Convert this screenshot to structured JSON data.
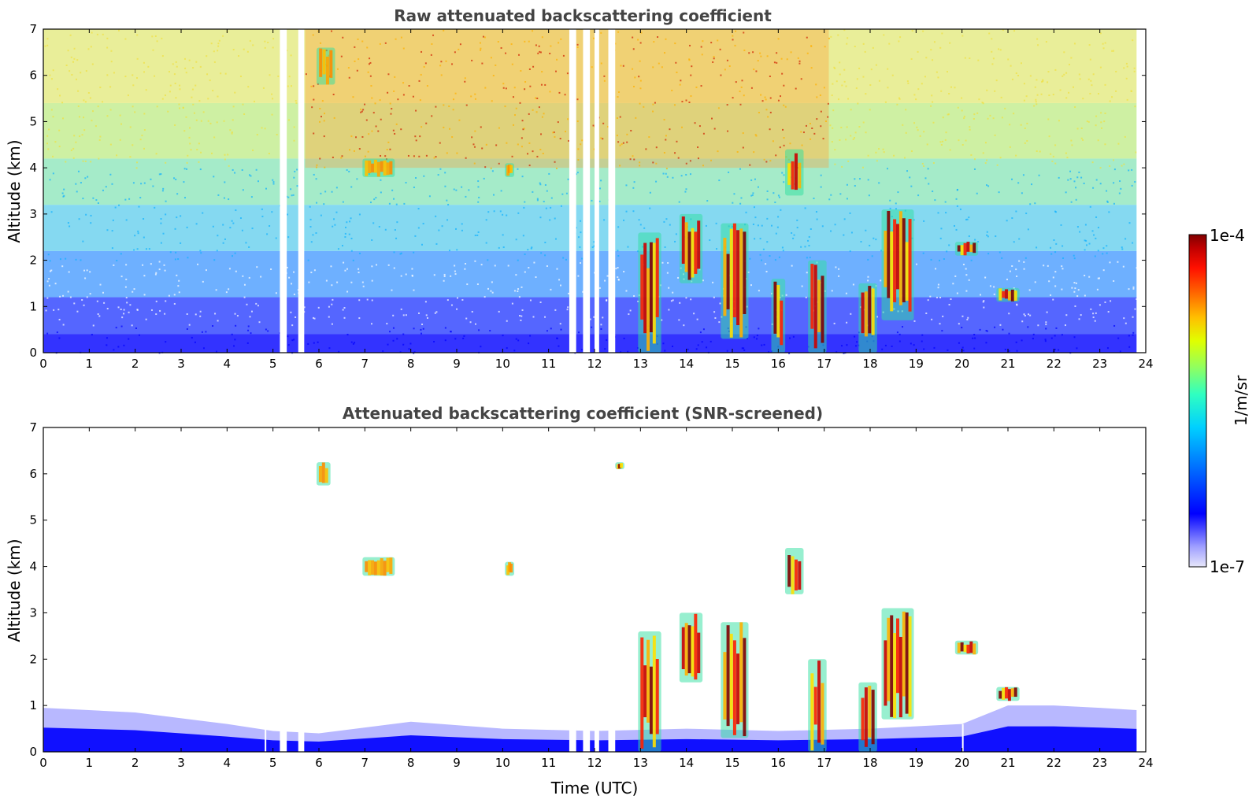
{
  "chart_data": [
    {
      "type": "heatmap",
      "title": "Raw attenuated backscattering coefficient",
      "xlabel": "",
      "ylabel": "Altitude (km)",
      "xlim": [
        0,
        24
      ],
      "ylim": [
        0,
        7
      ],
      "xticks": [
        "0",
        "1",
        "2",
        "3",
        "4",
        "5",
        "6",
        "7",
        "8",
        "9",
        "10",
        "11",
        "12",
        "13",
        "14",
        "15",
        "16",
        "17",
        "18",
        "19",
        "20",
        "21",
        "22",
        "23",
        "24"
      ],
      "yticks": [
        "0",
        "1",
        "2",
        "3",
        "4",
        "5",
        "6",
        "7"
      ],
      "grid": false,
      "gaps_utc": [
        [
          5.15,
          5.3
        ],
        [
          5.55,
          5.68
        ],
        [
          11.45,
          11.6
        ],
        [
          11.75,
          11.9
        ],
        [
          12.0,
          12.1
        ],
        [
          12.3,
          12.45
        ],
        [
          23.8,
          24
        ]
      ],
      "features": [
        {
          "x": [
            13.0,
            13.4
          ],
          "y": [
            0.0,
            2.6
          ],
          "level": "high"
        },
        {
          "x": [
            13.9,
            14.3
          ],
          "y": [
            1.5,
            3.0
          ],
          "level": "high"
        },
        {
          "x": [
            14.8,
            15.3
          ],
          "y": [
            0.3,
            2.8
          ],
          "level": "high"
        },
        {
          "x": [
            15.9,
            16.1
          ],
          "y": [
            0.0,
            1.6
          ],
          "level": "high"
        },
        {
          "x": [
            16.2,
            16.5
          ],
          "y": [
            3.4,
            4.4
          ],
          "level": "high"
        },
        {
          "x": [
            16.7,
            17.0
          ],
          "y": [
            0.0,
            2.0
          ],
          "level": "high"
        },
        {
          "x": [
            17.8,
            18.1
          ],
          "y": [
            0.0,
            1.5
          ],
          "level": "high"
        },
        {
          "x": [
            18.3,
            18.9
          ],
          "y": [
            0.7,
            3.1
          ],
          "level": "high"
        },
        {
          "x": [
            19.9,
            20.3
          ],
          "y": [
            2.1,
            2.4
          ],
          "level": "high"
        },
        {
          "x": [
            20.8,
            21.2
          ],
          "y": [
            1.1,
            1.4
          ],
          "level": "high"
        },
        {
          "x": [
            7.0,
            7.6
          ],
          "y": [
            3.8,
            4.2
          ],
          "level": "medium"
        },
        {
          "x": [
            10.1,
            10.2
          ],
          "y": [
            3.8,
            4.1
          ],
          "level": "medium"
        },
        {
          "x": [
            6.0,
            6.3
          ],
          "y": [
            5.8,
            6.6
          ],
          "level": "medium"
        }
      ]
    },
    {
      "type": "heatmap",
      "title": "Attenuated backscattering coefficient (SNR-screened)",
      "xlabel": "Time (UTC)",
      "ylabel": "Altitude (km)",
      "xlim": [
        0,
        24
      ],
      "ylim": [
        0,
        7
      ],
      "xticks": [
        "0",
        "1",
        "2",
        "3",
        "4",
        "5",
        "6",
        "7",
        "8",
        "9",
        "10",
        "11",
        "12",
        "13",
        "14",
        "15",
        "16",
        "17",
        "18",
        "19",
        "20",
        "21",
        "22",
        "23",
        "24"
      ],
      "yticks": [
        "0",
        "1",
        "2",
        "3",
        "4",
        "5",
        "6",
        "7"
      ],
      "grid": false,
      "boundary_layer_top_km": {
        "x": [
          0,
          2,
          4,
          5,
          6,
          8,
          10,
          12,
          14,
          16,
          18,
          20,
          21,
          22,
          23,
          23.8
        ],
        "y": [
          0.95,
          0.85,
          0.6,
          0.45,
          0.4,
          0.65,
          0.5,
          0.45,
          0.5,
          0.45,
          0.5,
          0.6,
          1.0,
          1.0,
          0.95,
          0.9
        ]
      },
      "features": [
        {
          "x": [
            13.0,
            13.4
          ],
          "y": [
            0.0,
            2.6
          ],
          "level": "high"
        },
        {
          "x": [
            13.9,
            14.3
          ],
          "y": [
            1.5,
            3.0
          ],
          "level": "high"
        },
        {
          "x": [
            14.8,
            15.3
          ],
          "y": [
            0.3,
            2.8
          ],
          "level": "high"
        },
        {
          "x": [
            16.2,
            16.5
          ],
          "y": [
            3.4,
            4.4
          ],
          "level": "high"
        },
        {
          "x": [
            16.7,
            17.0
          ],
          "y": [
            0.0,
            2.0
          ],
          "level": "high"
        },
        {
          "x": [
            17.8,
            18.1
          ],
          "y": [
            0.0,
            1.5
          ],
          "level": "high"
        },
        {
          "x": [
            18.3,
            18.9
          ],
          "y": [
            0.7,
            3.1
          ],
          "level": "high"
        },
        {
          "x": [
            19.9,
            20.3
          ],
          "y": [
            2.1,
            2.4
          ],
          "level": "high"
        },
        {
          "x": [
            20.8,
            21.2
          ],
          "y": [
            1.1,
            1.4
          ],
          "level": "high"
        },
        {
          "x": [
            7.0,
            7.6
          ],
          "y": [
            3.8,
            4.2
          ],
          "level": "medium"
        },
        {
          "x": [
            10.1,
            10.2
          ],
          "y": [
            3.8,
            4.1
          ],
          "level": "medium"
        },
        {
          "x": [
            6.0,
            6.2
          ],
          "y": [
            5.75,
            6.25
          ],
          "level": "medium"
        },
        {
          "x": [
            12.5,
            12.6
          ],
          "y": [
            6.1,
            6.25
          ],
          "level": "high"
        }
      ]
    }
  ],
  "colorbar": {
    "max_label": "1e-4",
    "min_label": "1e-7",
    "unit_label": "1/m/sr",
    "colors": [
      "#e6e6fa",
      "#a0a0ff",
      "#0000ff",
      "#0070ff",
      "#00d0ff",
      "#30ffc0",
      "#90ff60",
      "#e0ff00",
      "#ffc000",
      "#ff6000",
      "#ff1000",
      "#c00000",
      "#800000"
    ]
  }
}
